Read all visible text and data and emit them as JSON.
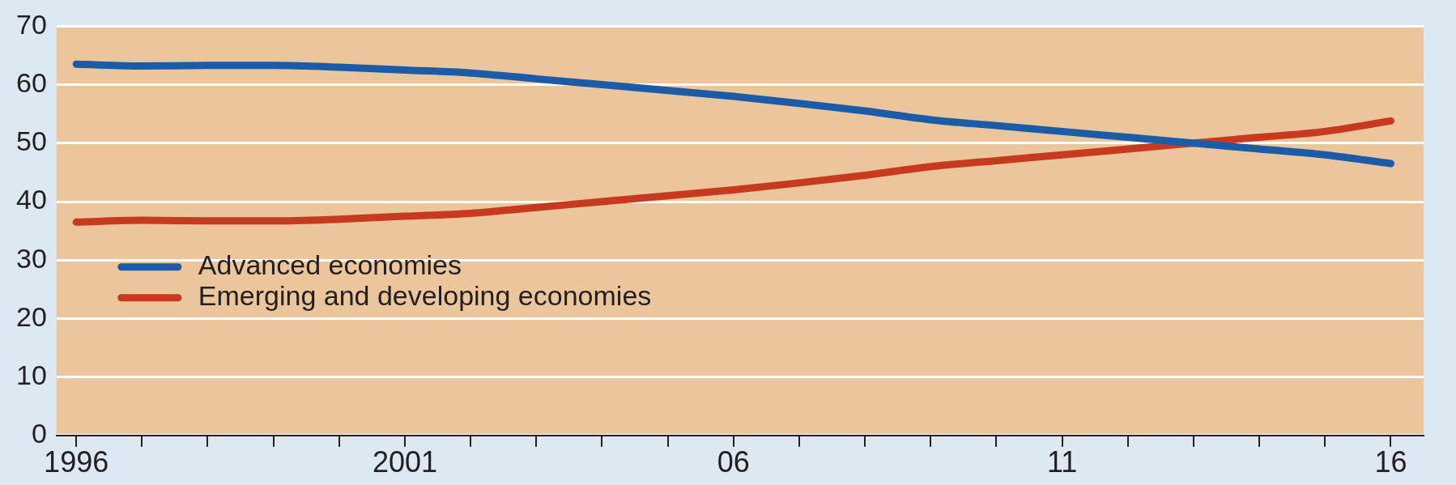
{
  "chart_data": {
    "type": "line",
    "x": [
      1996,
      1997,
      1998,
      1999,
      2000,
      2001,
      2002,
      2003,
      2004,
      2005,
      2006,
      2007,
      2008,
      2009,
      2010,
      2011,
      2012,
      2013,
      2014,
      2015,
      2016
    ],
    "series": [
      {
        "name": "Advanced economies",
        "color": "#1b5ca8",
        "values": [
          63.5,
          63.2,
          63.3,
          63.3,
          63,
          62.5,
          62,
          61,
          60,
          59,
          58,
          56.8,
          55.5,
          54,
          53,
          52,
          51,
          50,
          49,
          48,
          46.5
        ]
      },
      {
        "name": "Emerging and developing economies",
        "color": "#c83a20",
        "values": [
          36.5,
          36.8,
          36.7,
          36.7,
          37,
          37.5,
          38,
          39,
          40,
          41,
          42,
          43.2,
          44.5,
          46,
          47,
          48,
          49,
          50,
          51,
          52,
          53.8
        ]
      }
    ],
    "xlim": [
      1995.7,
      2016.5
    ],
    "xticks": [
      {
        "value": 1996,
        "label": "1996"
      },
      {
        "value": 1997,
        "label": null
      },
      {
        "value": 1998,
        "label": null
      },
      {
        "value": 1999,
        "label": null
      },
      {
        "value": 2000,
        "label": null
      },
      {
        "value": 2001,
        "label": "2001"
      },
      {
        "value": 2002,
        "label": null
      },
      {
        "value": 2003,
        "label": null
      },
      {
        "value": 2004,
        "label": null
      },
      {
        "value": 2005,
        "label": null
      },
      {
        "value": 2006,
        "label": "06"
      },
      {
        "value": 2007,
        "label": null
      },
      {
        "value": 2008,
        "label": null
      },
      {
        "value": 2009,
        "label": null
      },
      {
        "value": 2010,
        "label": null
      },
      {
        "value": 2011,
        "label": "11"
      },
      {
        "value": 2012,
        "label": null
      },
      {
        "value": 2013,
        "label": null
      },
      {
        "value": 2014,
        "label": null
      },
      {
        "value": 2015,
        "label": null
      },
      {
        "value": 2016,
        "label": "16"
      }
    ],
    "ylim": [
      0,
      70
    ],
    "yticks": [
      0,
      10,
      20,
      30,
      40,
      50,
      60,
      70
    ],
    "grid": "y",
    "legend": "bottom left",
    "marker": "none",
    "line_style": "solid"
  }
}
